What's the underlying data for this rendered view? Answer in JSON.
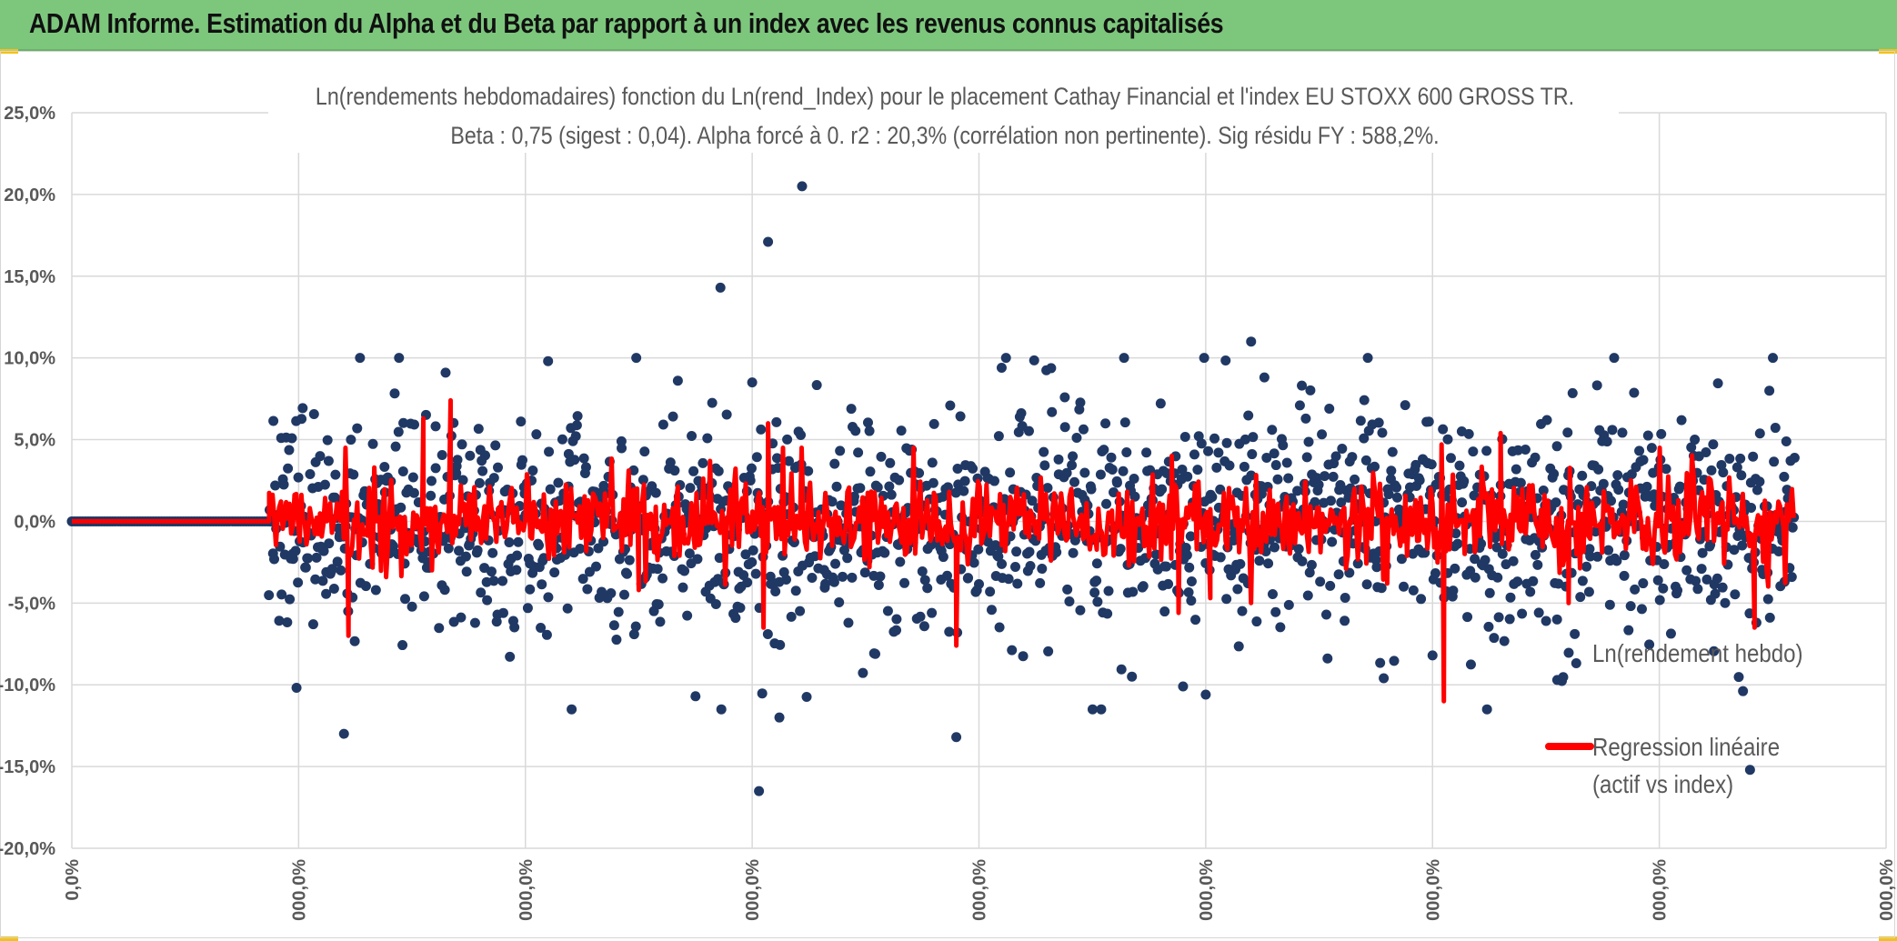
{
  "header": {
    "title": "ADAM Informe. Estimation du Alpha et du Beta par rapport à un index avec les revenus connus capitalisés"
  },
  "colors": {
    "header_bg": "#7dc77d",
    "corner_accent": "#f2c21b",
    "points": "#203864",
    "regression": "#ff0000",
    "grid": "#d9d9d9",
    "text": "#595959"
  },
  "chart_data": {
    "type": "scatter",
    "title": "Ln(rendements hebdomadaires) fonction du Ln(rend_Index) pour le placement Cathay Financial  et l'index EU STOXX 600 GROSS TR.",
    "subtitle": "Beta : 0,75 (sigest : 0,04). Alpha forcé à 0. r2 : 20,3% (corrélation non pertinente). Sig résidu FY : 588,2%.",
    "xlabel": "",
    "ylabel": "",
    "ylim": [
      -0.2,
      0.25
    ],
    "xlim": [
      0,
      8
    ],
    "y_tick_labels": [
      "25,0%",
      "20,0%",
      "15,0%",
      "10,0%",
      "5,0%",
      "0,0%",
      "-5,0%",
      "-10,0%",
      "-15,0%",
      "-20,0%"
    ],
    "x_tick_labels": [
      "0,0%",
      "000,0%",
      "000,0%",
      "000,0%",
      "000,0%",
      "000,0%",
      "000,0%",
      "000,0%",
      "000,0%"
    ],
    "grid": true,
    "legend_position": "bottom-right",
    "series": [
      {
        "name": "Ln(rendement hebdo)",
        "kind": "markers",
        "zero_segment": [
          0,
          0.87
        ],
        "active_range": [
          0.87,
          7.6
        ],
        "sigma": 0.032,
        "seed": 1,
        "notable_points": [
          {
            "x": 3.22,
            "y": 0.205
          },
          {
            "x": 3.07,
            "y": 0.171
          },
          {
            "x": 2.86,
            "y": 0.143
          },
          {
            "x": 3.03,
            "y": -0.165
          },
          {
            "x": 3.0,
            "y": 0.085
          },
          {
            "x": 3.12,
            "y": -0.12
          },
          {
            "x": 2.1,
            "y": 0.098
          },
          {
            "x": 4.1,
            "y": 0.094
          },
          {
            "x": 5.2,
            "y": 0.11
          },
          {
            "x": 3.9,
            "y": -0.132
          },
          {
            "x": 1.2,
            "y": -0.13
          },
          {
            "x": 5.0,
            "y": -0.106
          },
          {
            "x": 7.4,
            "y": -0.152
          },
          {
            "x": 2.75,
            "y": -0.107
          },
          {
            "x": 4.9,
            "y": -0.101
          },
          {
            "x": 6.55,
            "y": -0.097
          },
          {
            "x": 6.0,
            "y": -0.082
          }
        ]
      },
      {
        "name": "Regression linéaire",
        "name_line2": "(actif vs index)",
        "kind": "line",
        "beta": 0.75,
        "active_range": [
          0.87,
          7.6
        ],
        "sigma": 0.012,
        "seed": 7,
        "spikes": [
          {
            "x": 6.05,
            "y": -0.11
          },
          {
            "x": 6.04,
            "y": 0.047
          },
          {
            "x": 1.55,
            "y": 0.063
          },
          {
            "x": 1.67,
            "y": 0.074
          },
          {
            "x": 3.07,
            "y": 0.06
          },
          {
            "x": 3.05,
            "y": -0.065
          },
          {
            "x": 3.9,
            "y": -0.076
          },
          {
            "x": 4.88,
            "y": -0.056
          },
          {
            "x": 4.85,
            "y": 0.04
          },
          {
            "x": 6.3,
            "y": 0.054
          },
          {
            "x": 7.42,
            "y": -0.065
          },
          {
            "x": 1.22,
            "y": -0.07
          },
          {
            "x": 2.5,
            "y": -0.042
          },
          {
            "x": 5.8,
            "y": -0.038
          },
          {
            "x": 5.02,
            "y": -0.047
          },
          {
            "x": 6.6,
            "y": -0.05
          }
        ]
      }
    ]
  }
}
